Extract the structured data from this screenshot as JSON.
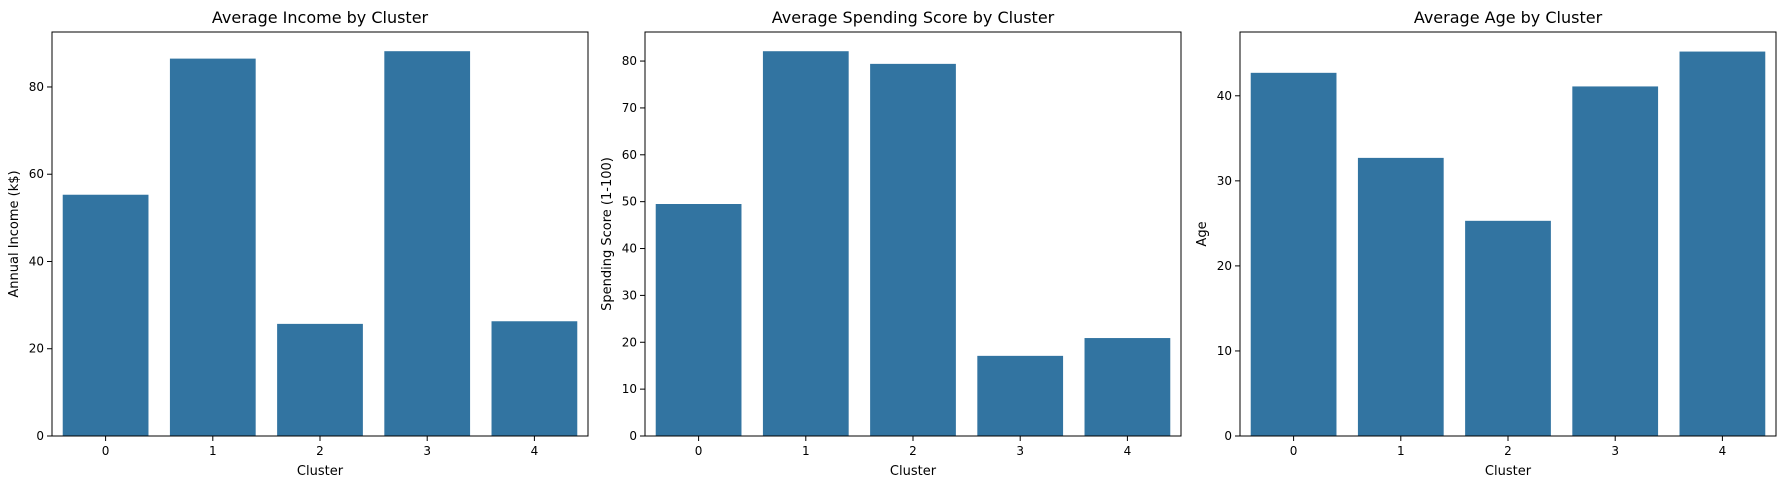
{
  "colors": {
    "bar": "#3274a1",
    "axis": "#000000",
    "background": "#ffffff"
  },
  "chart_data": [
    {
      "type": "bar",
      "title": "Average Income by Cluster",
      "xlabel": "Cluster",
      "ylabel": "Annual Income (k$)",
      "categories": [
        "0",
        "1",
        "2",
        "3",
        "4"
      ],
      "values": [
        55.3,
        86.5,
        25.7,
        88.2,
        26.3
      ],
      "ylim": [
        0,
        92.6
      ],
      "yticks": [
        0,
        20,
        40,
        60,
        80
      ],
      "grid": false
    },
    {
      "type": "bar",
      "title": "Average Spending Score by Cluster",
      "xlabel": "Cluster",
      "ylabel": "Spending Score (1-100)",
      "categories": [
        "0",
        "1",
        "2",
        "3",
        "4"
      ],
      "values": [
        49.5,
        82.1,
        79.4,
        17.1,
        20.9
      ],
      "ylim": [
        0,
        86.2
      ],
      "yticks": [
        0,
        10,
        20,
        30,
        40,
        50,
        60,
        70,
        80
      ],
      "grid": false
    },
    {
      "type": "bar",
      "title": "Average Age by Cluster",
      "xlabel": "Cluster",
      "ylabel": "Age",
      "categories": [
        "0",
        "1",
        "2",
        "3",
        "4"
      ],
      "values": [
        42.7,
        32.7,
        25.3,
        41.1,
        45.2
      ],
      "ylim": [
        0,
        47.5
      ],
      "yticks": [
        0,
        10,
        20,
        30,
        40
      ],
      "grid": false
    }
  ]
}
